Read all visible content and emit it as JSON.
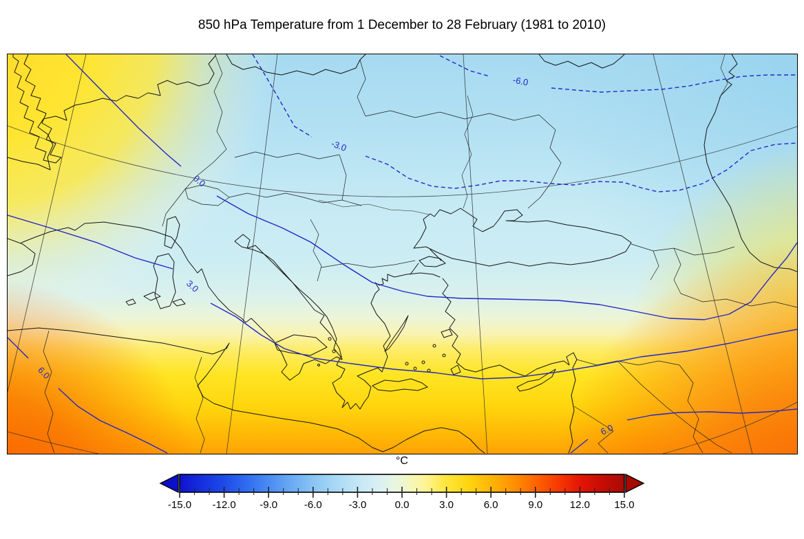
{
  "title": "850 hPa Temperature from 1 December to 28 February (1981 to 2010)",
  "colorbar": {
    "unit_label": "°C",
    "min": -15,
    "max": 15,
    "minor_step": 1,
    "major_ticks": [
      {
        "value": -15,
        "label": "-15.0"
      },
      {
        "value": -12,
        "label": "-12.0"
      },
      {
        "value": -9,
        "label": "-9.0"
      },
      {
        "value": -6,
        "label": "-6.0"
      },
      {
        "value": -3,
        "label": "-3.0"
      },
      {
        "value": 0,
        "label": "0.0"
      },
      {
        "value": 3,
        "label": "3.0"
      },
      {
        "value": 6,
        "label": "6.0"
      },
      {
        "value": 9,
        "label": "9.0"
      },
      {
        "value": 12,
        "label": "12.0"
      },
      {
        "value": 15,
        "label": "15.0"
      }
    ],
    "under_color": "#0d10c9",
    "over_color": "#a50b04",
    "stops": [
      {
        "value": -15,
        "color": "#1012cf"
      },
      {
        "value": -13.5,
        "color": "#1530dd"
      },
      {
        "value": -12,
        "color": "#1e4ae8"
      },
      {
        "value": -10.5,
        "color": "#2f6cf0"
      },
      {
        "value": -9,
        "color": "#4a8bf2"
      },
      {
        "value": -7.5,
        "color": "#69aaf4"
      },
      {
        "value": -6,
        "color": "#8ac4f4"
      },
      {
        "value": -4.5,
        "color": "#a8d8f5"
      },
      {
        "value": -3,
        "color": "#c3e7f6"
      },
      {
        "value": -1.5,
        "color": "#daf0f4"
      },
      {
        "value": -0.5,
        "color": "#e8f5e0"
      },
      {
        "value": 0,
        "color": "#edf6d4"
      },
      {
        "value": 0.75,
        "color": "#f6f7b4"
      },
      {
        "value": 1.5,
        "color": "#fdf49a"
      },
      {
        "value": 3,
        "color": "#ffe63a"
      },
      {
        "value": 4.5,
        "color": "#ffd410"
      },
      {
        "value": 6,
        "color": "#ffb507"
      },
      {
        "value": 7.5,
        "color": "#ff9103"
      },
      {
        "value": 9,
        "color": "#fe6501"
      },
      {
        "value": 10.5,
        "color": "#f73a01"
      },
      {
        "value": 12,
        "color": "#e41505"
      },
      {
        "value": 13.5,
        "color": "#c50d05"
      },
      {
        "value": 15,
        "color": "#a90b04"
      }
    ]
  },
  "contours": [
    {
      "value": -6,
      "label": "-6.0",
      "style": "dashed",
      "color": "#2226c8"
    },
    {
      "value": -3,
      "label": "-3.0",
      "style": "dashed",
      "color": "#2226c8"
    },
    {
      "value": 0,
      "label": "0.0",
      "style": "solid",
      "color": "#2226c8"
    },
    {
      "value": 3,
      "label": "3.0",
      "style": "solid",
      "color": "#2226c8"
    },
    {
      "value": 6,
      "label": "6.0",
      "style": "solid",
      "color": "#2226c8"
    }
  ],
  "map_palette": {
    "cold_north": "#a6daf1",
    "transition_zero": "#edf6d4",
    "warm_yellow": "#ffe524",
    "hot_south": "#f96400"
  },
  "chart_data": {
    "type": "heatmap",
    "title": "850 hPa Temperature from 1 December to 28 February (1981 to 2010)",
    "variable": "850 hPa temperature climatology",
    "unit": "°C",
    "colorbar": {
      "min": -15,
      "max": 15,
      "major_tick_step": 3,
      "minor_tick_step": 1,
      "tick_labels": [
        "-15.0",
        "-12.0",
        "-9.0",
        "-6.0",
        "-3.0",
        "0.0",
        "3.0",
        "6.0",
        "9.0",
        "12.0",
        "15.0"
      ],
      "extend": "both"
    },
    "contour_levels_labeled": [
      -6.0,
      -3.0,
      0.0,
      3.0,
      6.0
    ],
    "contour_line_style": {
      "negative_levels": "dashed",
      "non_negative_levels": "solid",
      "color": "#2226c8"
    },
    "field_summary": [
      {
        "region": "northeast of map (eastern Europe / Russia)",
        "approx_value_c": -6
      },
      {
        "region": "central Europe / Balkans / Black Sea",
        "approx_value_c": -3
      },
      {
        "region": "zero line from NW corner through north Italy, Balkans, Anatolia",
        "approx_value_c": 0
      },
      {
        "region": "western Mediterranean and Aegean",
        "approx_value_c": 3
      },
      {
        "region": "north Africa and Middle East",
        "approx_value_c": 6
      },
      {
        "region": "southwest and southeast corners",
        "approx_value_c": 9
      }
    ],
    "legend_position": "bottom",
    "grid": "graticule lines over map"
  }
}
